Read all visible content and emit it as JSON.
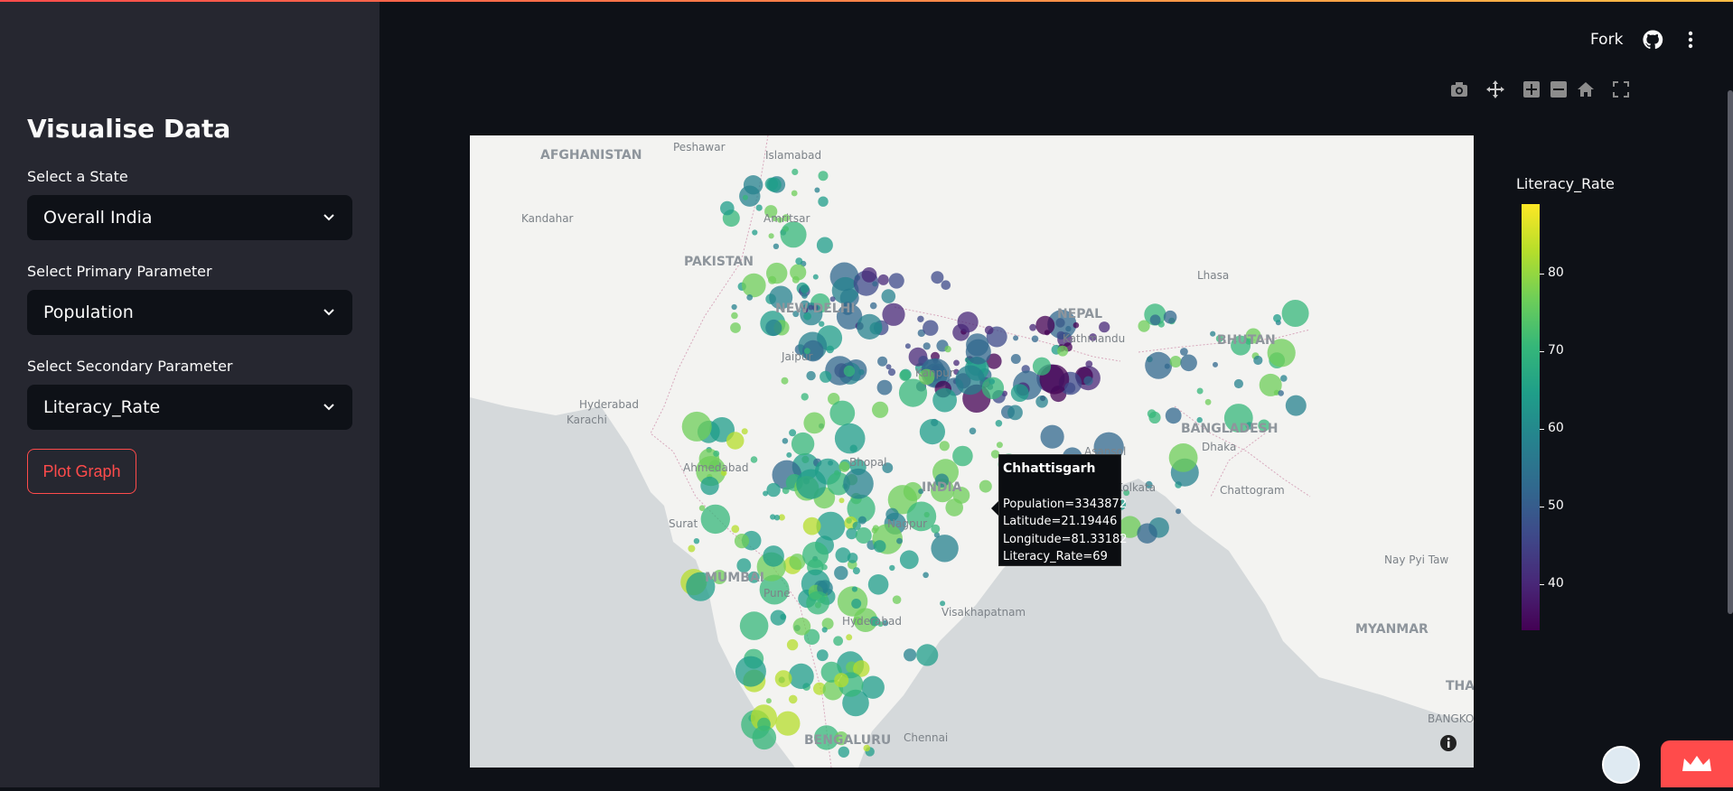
{
  "sidebar": {
    "title": "Visualise Data",
    "state_label": "Select a State",
    "state_value": "Overall India",
    "primary_label": "Select Primary Parameter",
    "primary_value": "Population",
    "secondary_label": "Select Secondary Parameter",
    "secondary_value": "Literacy_Rate",
    "plot_button": "Plot Graph"
  },
  "header": {
    "fork_label": "Fork",
    "github_icon": "github-icon",
    "menu_icon": "more-vert-icon"
  },
  "modebar": {
    "icons": [
      "camera-icon",
      "pan-icon",
      "zoom-in-icon",
      "zoom-out-icon",
      "home-icon",
      "fullscreen-icon"
    ]
  },
  "map_labels": [
    {
      "text": "AFGHANISTAN"
    },
    {
      "text": "Peshawar"
    },
    {
      "text": "Islamabad"
    },
    {
      "text": "Kandahar"
    },
    {
      "text": "Amritsar"
    },
    {
      "text": "PAKISTAN"
    },
    {
      "text": "Lhasa"
    },
    {
      "text": "NEW DELHI"
    },
    {
      "text": "NEPAL"
    },
    {
      "text": "Kathmandu"
    },
    {
      "text": "BHUTAN"
    },
    {
      "text": "Jaipur"
    },
    {
      "text": "Kanpur"
    },
    {
      "text": "Hyderabad"
    },
    {
      "text": "Karachi"
    },
    {
      "text": "BANGLADESH"
    },
    {
      "text": "Dhaka"
    },
    {
      "text": "Ahmedabad"
    },
    {
      "text": "Bhopal"
    },
    {
      "text": "Asansol"
    },
    {
      "text": "Kolkata"
    },
    {
      "text": "INDIA"
    },
    {
      "text": "Chattogram"
    },
    {
      "text": "Surat"
    },
    {
      "text": "Nagpur"
    },
    {
      "text": "Nay Pyi Taw"
    },
    {
      "text": "MUMBAI"
    },
    {
      "text": "Pune"
    },
    {
      "text": "Visakhapatnam"
    },
    {
      "text": "Hyderabad"
    },
    {
      "text": "MYANMAR"
    },
    {
      "text": "THA"
    },
    {
      "text": "BANGKOK"
    },
    {
      "text": "BENGALURU"
    },
    {
      "text": "Chennai"
    }
  ],
  "tooltip": {
    "title": "Chhattisgarh",
    "population": "Population=3343872",
    "latitude": "Latitude=21.19446",
    "longitude": "Longitude=81.33182",
    "literacy": "Literacy_Rate=69"
  },
  "colorbar": {
    "title": "Literacy_Rate",
    "ticks": [
      "80",
      "70",
      "60",
      "50",
      "40"
    ]
  },
  "chart_data": {
    "type": "scatter",
    "title": "",
    "color_variable": "Literacy_Rate",
    "size_variable": "Population",
    "colorscale": "viridis",
    "color_range": [
      34,
      89
    ],
    "hovered_point": {
      "name": "Chhattisgarh",
      "Population": 3343872,
      "Latitude": 21.19446,
      "Longitude": 81.33182,
      "Literacy_Rate": 69
    }
  }
}
